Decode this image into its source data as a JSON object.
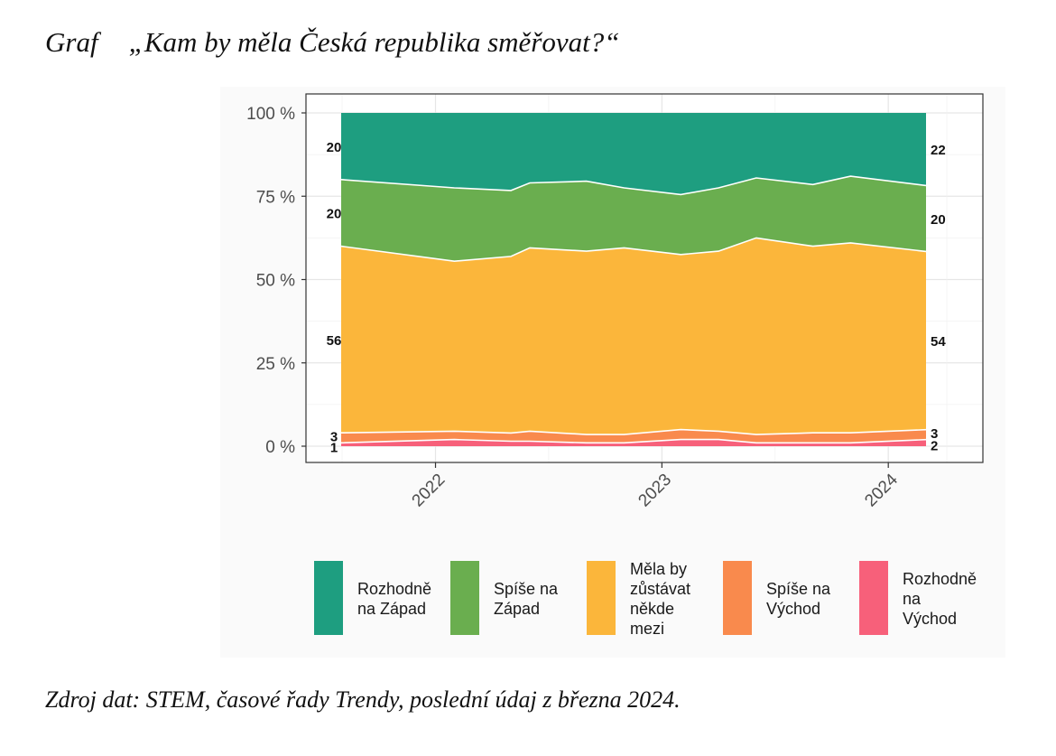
{
  "heading": {
    "prefix": "Graf",
    "title": "„Kam by měla Česká republika směřovat?“"
  },
  "source": "Zdroj dat: STEM, časové řady Trendy, poslední údaj z března 2024.",
  "chart_data": {
    "type": "area",
    "stacked": true,
    "title": "„Kam by měla Česká republika směřovat?“",
    "xlabel": "",
    "ylabel": "",
    "x": [
      "2021-08",
      "2022-02",
      "2022-05",
      "2022-06",
      "2022-09",
      "2022-11",
      "2023-02",
      "2023-04",
      "2023-06",
      "2023-09",
      "2023-11",
      "2024-03"
    ],
    "x_tick_labels": [
      "2022",
      "2023",
      "2024"
    ],
    "x_tick_positions": [
      "2022-01",
      "2023-01",
      "2024-01"
    ],
    "y_ticks": [
      "0 %",
      "25 %",
      "50 %",
      "75 %",
      "100 %"
    ],
    "ylim": [
      0,
      100
    ],
    "grid": true,
    "legend_position": "bottom",
    "series": [
      {
        "name": "Rozhodně na Východ",
        "legend_lines": [
          "Rozhodně",
          "na",
          "Východ"
        ],
        "color": "#F7607A",
        "values": [
          1,
          2,
          1.5,
          1.5,
          1,
          1,
          2,
          2,
          1,
          1,
          1,
          2
        ]
      },
      {
        "name": "Spíše na Východ",
        "legend_lines": [
          "Spíše na",
          "Východ"
        ],
        "color": "#F98A4D",
        "values": [
          3,
          2.5,
          2.5,
          3,
          2.5,
          2.5,
          3,
          2.5,
          2.5,
          3,
          3,
          3
        ]
      },
      {
        "name": "Měla by zůstávat někde mezi",
        "legend_lines": [
          "Měla by",
          "zůstávat",
          "někde",
          "mezi"
        ],
        "color": "#FBB63B",
        "values": [
          56,
          51,
          53.5,
          55,
          55,
          56,
          52.5,
          54,
          59,
          56,
          57,
          54
        ]
      },
      {
        "name": "Spíše na Západ",
        "legend_lines": [
          "Spíše na",
          "Západ"
        ],
        "color": "#6AAE4F",
        "values": [
          20,
          22,
          20,
          19.5,
          21,
          18,
          18,
          19,
          18,
          18.5,
          20,
          20
        ]
      },
      {
        "name": "Rozhodně na Západ",
        "legend_lines": [
          "Rozhodně",
          "na Západ"
        ],
        "color": "#1E9E80",
        "values": [
          20,
          22.5,
          23.5,
          21,
          20.5,
          22.5,
          24.5,
          22.5,
          19.5,
          21.5,
          19,
          22
        ]
      }
    ],
    "start_labels": [
      "1",
      "3",
      "56",
      "20",
      "20"
    ],
    "end_labels": [
      "2",
      "3",
      "54",
      "20",
      "22"
    ]
  }
}
